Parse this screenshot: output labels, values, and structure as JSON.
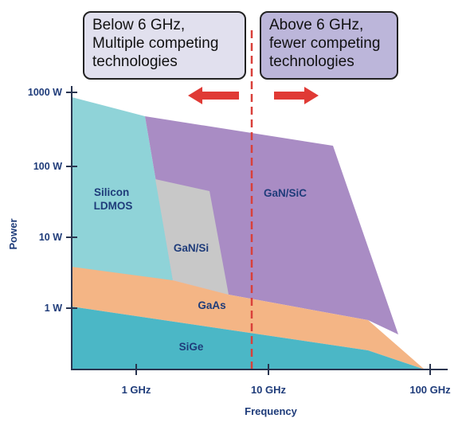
{
  "callouts": {
    "below": {
      "lines": [
        "Below 6 GHz,",
        "Multiple competing",
        "technologies"
      ]
    },
    "above": {
      "lines": [
        "Above 6 GHz,",
        "fewer competing",
        "technologies"
      ]
    }
  },
  "axes": {
    "y_label": "Power",
    "y_ticks": [
      "1000 W",
      "100 W",
      "10 W",
      "1 W"
    ],
    "x_label": "Frequency",
    "x_ticks": [
      "1 GHz",
      "10 GHz",
      "100 GHz"
    ]
  },
  "regions": {
    "silicon_ldmos": {
      "lines": [
        "Silicon",
        "LDMOS"
      ]
    },
    "gan_si": "GaN/Si",
    "gan_sic": "GaN/SiC",
    "gaas": "GaAs",
    "sige": "SiGe"
  },
  "colors": {
    "silicon_ldmos": "#8fd3d8",
    "gan_sic": "#a98cc4",
    "gan_si": "#c8c8c8",
    "gaas": "#f4b585",
    "sige": "#4bb7c6",
    "divider": "#d9403a",
    "arrow": "#e03a35",
    "callout_left_fill": "#e1e0ee",
    "callout_right_fill": "#bcb6da",
    "axis_label": "#1f3c7a"
  }
}
